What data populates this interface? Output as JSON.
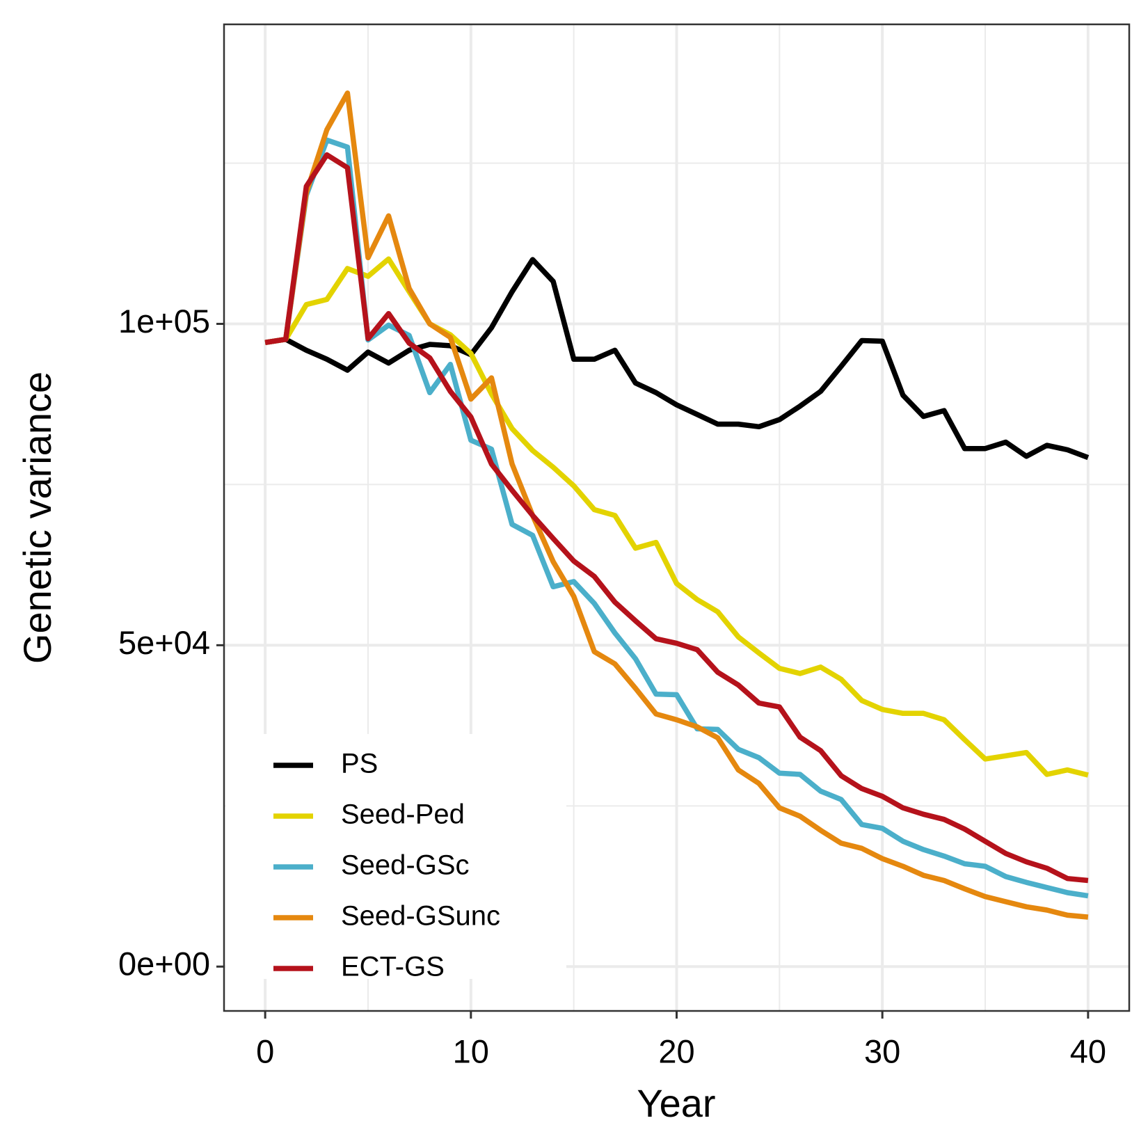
{
  "chart_data": {
    "type": "line",
    "x_label": "Year",
    "y_label": "Genetic variance",
    "x": [
      0,
      1,
      2,
      3,
      4,
      5,
      6,
      7,
      8,
      9,
      10,
      11,
      12,
      13,
      14,
      15,
      16,
      17,
      18,
      19,
      20,
      21,
      22,
      23,
      24,
      25,
      26,
      27,
      28,
      29,
      30,
      31,
      32,
      33,
      34,
      35,
      36,
      37,
      38,
      39,
      40
    ],
    "series": [
      {
        "name": "PS",
        "color": "#000000",
        "values": [
          97100,
          97600,
          95900,
          94500,
          92800,
          95600,
          93900,
          95900,
          96800,
          96600,
          95200,
          99400,
          105000,
          110000,
          106600,
          94500,
          94500,
          95900,
          90800,
          89300,
          87400,
          85900,
          84400,
          84400,
          84000,
          85100,
          87200,
          89500,
          93400,
          97400,
          97300,
          88900,
          85600,
          86500,
          80600,
          80600,
          81600,
          79400,
          81100,
          80400,
          79200
        ]
      },
      {
        "name": "Seed-Ped",
        "color": "#e3d300",
        "values": [
          97100,
          97600,
          103000,
          103800,
          108600,
          107400,
          110100,
          105000,
          100000,
          98300,
          95400,
          89100,
          83700,
          80300,
          77700,
          74800,
          71100,
          70200,
          65100,
          66000,
          59600,
          57100,
          55200,
          51300,
          48800,
          46400,
          45600,
          46600,
          44700,
          41400,
          40000,
          39400,
          39400,
          38400,
          35300,
          32300,
          32800,
          33300,
          29900,
          30600,
          29800
        ]
      },
      {
        "name": "Seed-GSc",
        "color": "#4bafca",
        "values": [
          97100,
          97600,
          120000,
          128600,
          127500,
          97500,
          99800,
          98200,
          89300,
          93700,
          81900,
          80500,
          68800,
          67100,
          59100,
          59900,
          56500,
          51900,
          47900,
          42400,
          42300,
          37000,
          36900,
          33800,
          32500,
          30100,
          29900,
          27300,
          26000,
          22100,
          21500,
          19500,
          18200,
          17200,
          16000,
          15600,
          14000,
          13100,
          12300,
          11500,
          11000
        ]
      },
      {
        "name": "Seed-GSunc",
        "color": "#e5880f",
        "values": [
          97100,
          97600,
          120400,
          130200,
          135900,
          110300,
          116800,
          105500,
          100000,
          97900,
          88300,
          91600,
          78200,
          70200,
          63000,
          57600,
          49000,
          47100,
          43300,
          39300,
          38400,
          37300,
          35600,
          30600,
          28500,
          24700,
          23400,
          21200,
          19200,
          18400,
          16800,
          15600,
          14200,
          13400,
          12100,
          10900,
          10100,
          9300,
          8800,
          8000,
          7700
        ]
      },
      {
        "name": "ECT-GS",
        "color": "#b5121b",
        "values": [
          97100,
          97600,
          121400,
          126300,
          124300,
          97700,
          101600,
          97000,
          94700,
          89500,
          85500,
          78200,
          74100,
          70200,
          66600,
          63100,
          60700,
          56700,
          53800,
          51000,
          50300,
          49300,
          45800,
          43800,
          41000,
          40400,
          35700,
          33600,
          29700,
          27700,
          26500,
          24700,
          23700,
          22900,
          21400,
          19500,
          17600,
          16300,
          15300,
          13700,
          13400
        ]
      }
    ],
    "xlim": [
      -2,
      42
    ],
    "xticks": [
      0,
      10,
      20,
      30,
      40
    ],
    "ylim": [
      -6900,
      146600
    ],
    "yticks": [
      {
        "value": 0,
        "label": "0e+00"
      },
      {
        "value": 50000,
        "label": "5e+04"
      },
      {
        "value": 100000,
        "label": "1e+05"
      }
    ],
    "grid": true,
    "minor_grid": true,
    "legend": "bottom-left"
  }
}
